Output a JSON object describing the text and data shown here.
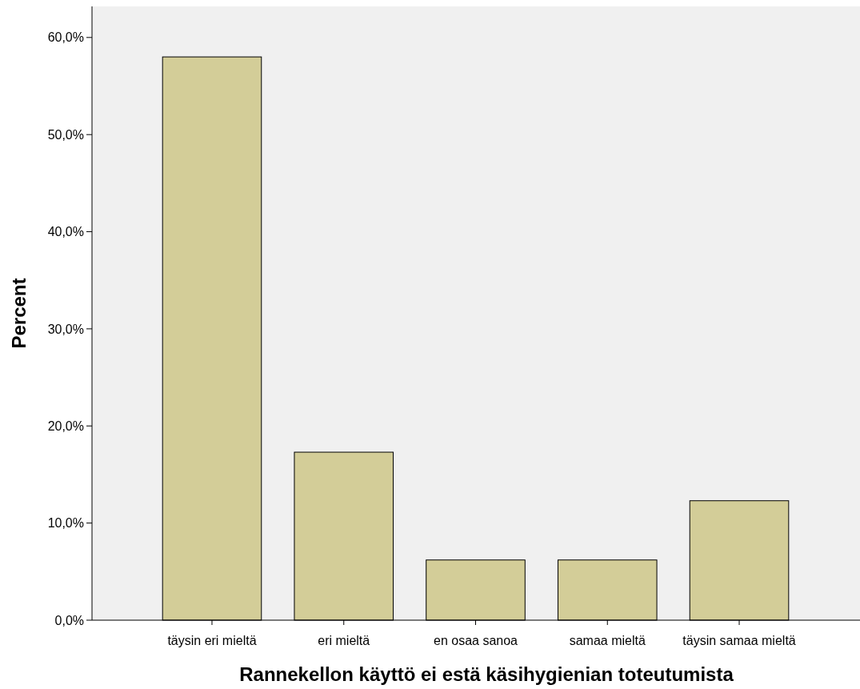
{
  "chart_data": {
    "type": "bar",
    "xlabel": "Rannekellon käyttö ei estä käsihygienian toteutumista",
    "ylabel": "Percent",
    "categories": [
      "täysin eri mieltä",
      "eri mieltä",
      "en osaa sanoa",
      "samaa mieltä",
      "täysin samaa mieltä"
    ],
    "values": [
      58.0,
      17.3,
      6.2,
      6.2,
      12.3
    ],
    "color": "#d3cd98",
    "ylim": [
      0,
      63.2
    ],
    "yticks": [
      {
        "value": 0,
        "label": "0,0%"
      },
      {
        "value": 10,
        "label": "10,0%"
      },
      {
        "value": 20,
        "label": "20,0%"
      },
      {
        "value": 30,
        "label": "30,0%"
      },
      {
        "value": 40,
        "label": "40,0%"
      },
      {
        "value": 50,
        "label": "50,0%"
      },
      {
        "value": 60,
        "label": "60,0%"
      }
    ],
    "grid": false
  }
}
